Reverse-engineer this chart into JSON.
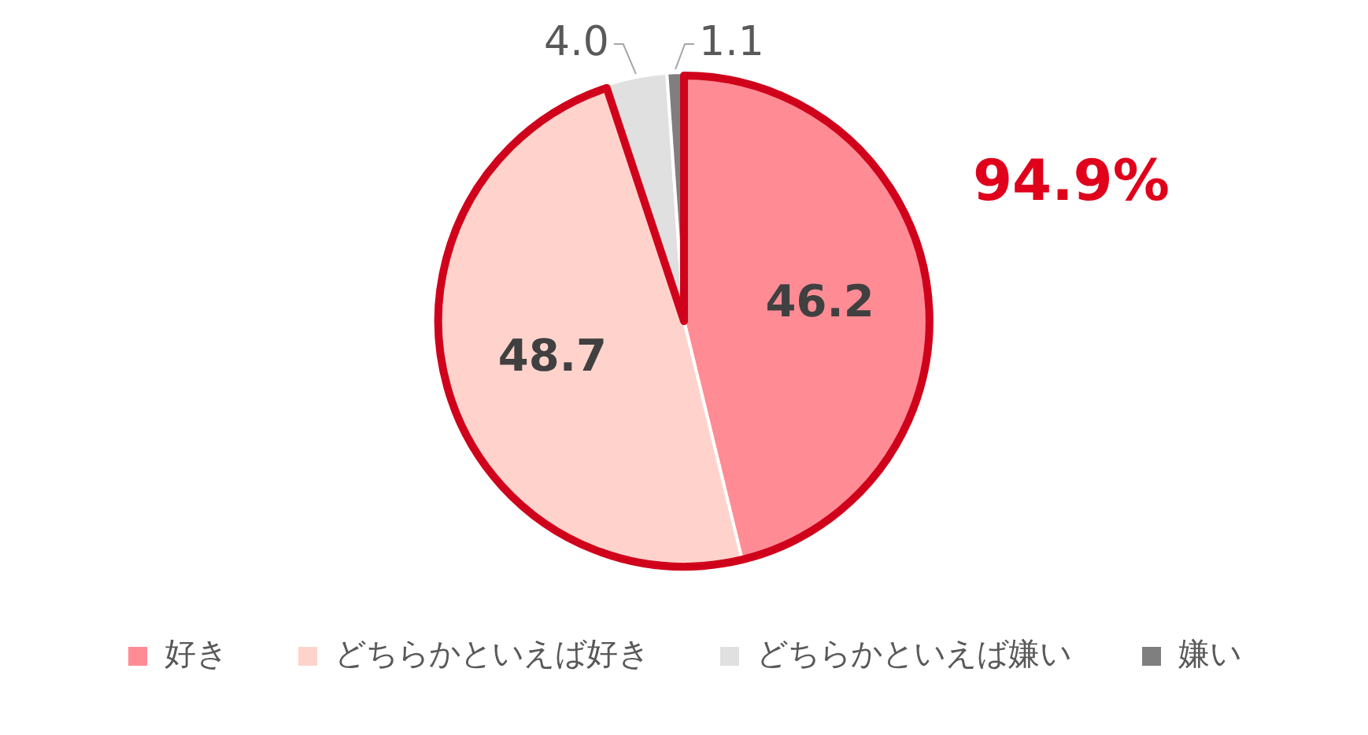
{
  "chart_data": {
    "type": "pie",
    "categories": [
      "好き",
      "どちらかといえば好き",
      "どちらかといえば嫌い",
      "嫌い"
    ],
    "values": [
      46.2,
      48.7,
      4.0,
      1.1
    ],
    "colors": [
      "#ff8c94",
      "#ffd3cc",
      "#e0e0e0",
      "#7f7f7f"
    ],
    "value_labels": [
      "46.2",
      "48.7",
      "4.0",
      "1.1"
    ],
    "legend": "bottom",
    "annotations": [
      "94.9%"
    ]
  }
}
